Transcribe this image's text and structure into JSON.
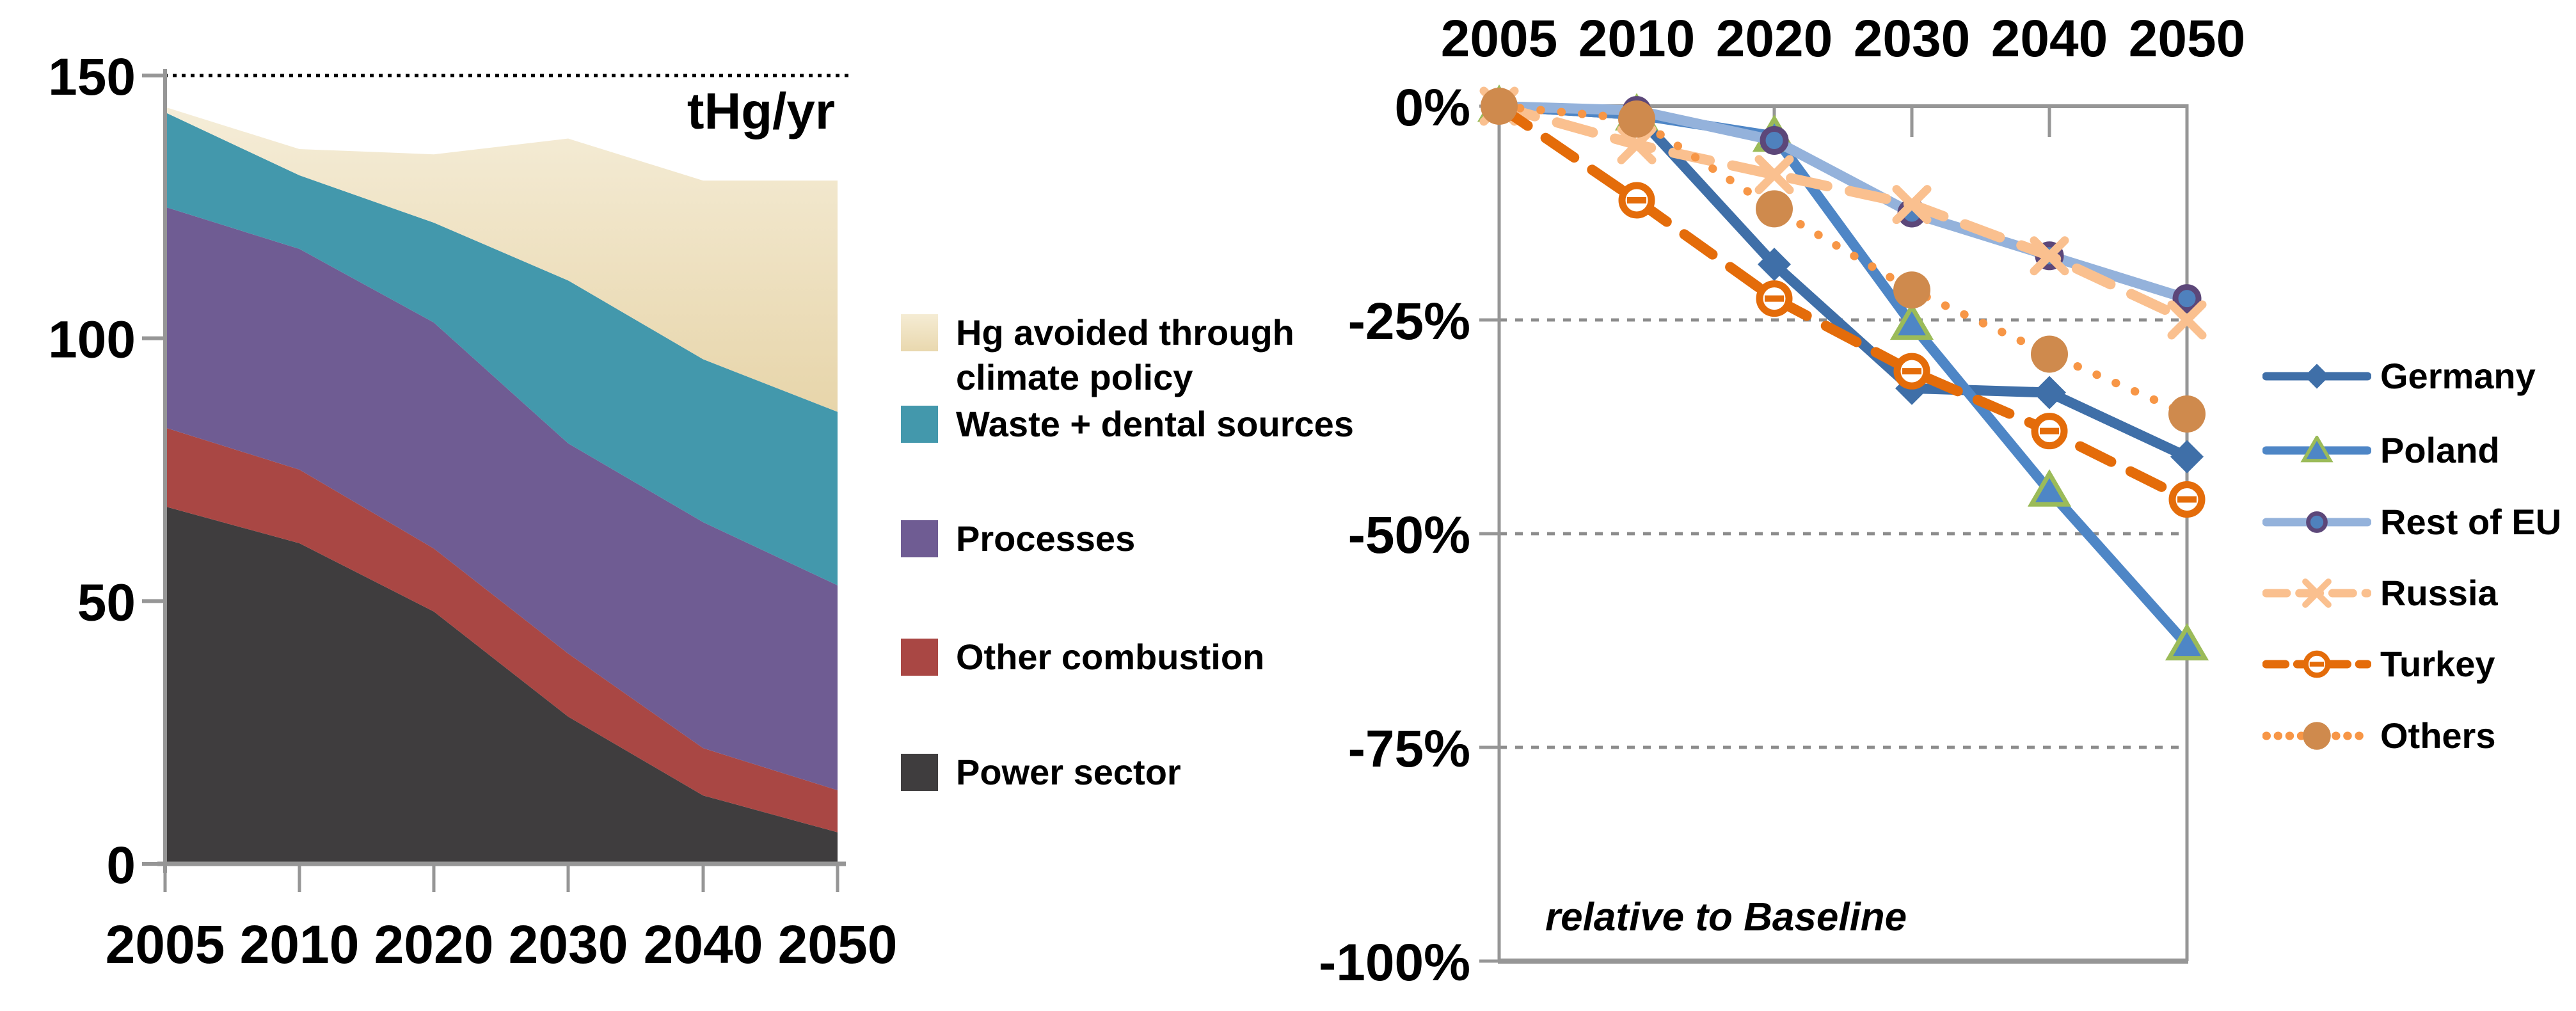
{
  "chart_data": [
    {
      "type": "area",
      "title": "tHg/yr",
      "categories": [
        2005,
        2010,
        2020,
        2030,
        2040,
        2050
      ],
      "x_tick_labels": [
        "2005",
        "2010",
        "2020",
        "2030",
        "2040",
        "2050"
      ],
      "y_tick_labels": [
        "0",
        "50",
        "100",
        "150"
      ],
      "yticks": [
        0,
        50,
        100,
        150
      ],
      "ylim": [
        0,
        150
      ],
      "ref_line": 150,
      "axis_color": "#969696",
      "ref_line_color": "#000000",
      "legend_position": "right",
      "stack_order_bottom_to_top": [
        "Power sector",
        "Other combustion",
        "Processes",
        "Waste + dental sources",
        "Hg avoided through climate policy"
      ],
      "series": [
        {
          "name": "Power sector",
          "color": "#3F3D3E",
          "values": [
            68,
            61,
            48,
            28,
            13,
            6
          ]
        },
        {
          "name": "Other combustion",
          "color": "#A94744",
          "values": [
            15,
            14,
            12,
            12,
            9,
            8
          ]
        },
        {
          "name": "Processes",
          "color": "#6F5C93",
          "values": [
            42,
            42,
            43,
            40,
            43,
            39
          ]
        },
        {
          "name": "Waste + dental sources",
          "color": "#4398AC",
          "values": [
            18,
            14,
            19,
            31,
            31,
            33
          ]
        },
        {
          "name": "Hg avoided through climate policy",
          "color": "#F0E6CB",
          "gradient": {
            "top": "#F5EDD8",
            "bottom": "#E7D5AA"
          },
          "values": [
            1,
            5,
            13,
            27,
            34,
            44
          ]
        }
      ]
    },
    {
      "type": "line",
      "annotation": "relative to Baseline",
      "categories": [
        2005,
        2010,
        2020,
        2030,
        2040,
        2050
      ],
      "x_tick_labels": [
        "2005",
        "2010",
        "2020",
        "2030",
        "2040",
        "2050"
      ],
      "y_tick_labels": [
        "0%",
        "-25%",
        "-50%",
        "-75%",
        "-100%"
      ],
      "yticks": [
        0,
        -25,
        -50,
        -75,
        -100
      ],
      "ylim": [
        -100,
        0
      ],
      "grid_on": true,
      "axis_color": "#969696",
      "grid_color": "#8C8C8C",
      "legend_position": "right",
      "series": [
        {
          "name": "Germany",
          "color": "#3F6FA8",
          "marker": "diamond",
          "marker_fill": "#3F6FA8",
          "dash": "",
          "values": [
            0,
            -1,
            -18.5,
            -33,
            -33.5,
            -41
          ]
        },
        {
          "name": "Poland",
          "color": "#4E86C6",
          "marker": "triangle",
          "marker_fill": "#4E86C6",
          "marker_border": "#9BBB59",
          "dash": "",
          "values": [
            0,
            -1,
            -3.5,
            -25.5,
            -45,
            -63
          ]
        },
        {
          "name": "Rest of EU",
          "color": "#94B2DB",
          "marker": "circle",
          "marker_fill": "#4F81BD",
          "marker_border": "#5C4779",
          "dash": "",
          "values": [
            0,
            -0.5,
            -4,
            -12.5,
            -17.5,
            -22.5
          ]
        },
        {
          "name": "Russia",
          "color": "#FAC08F",
          "marker": "x",
          "dash": "58 36",
          "values": [
            0,
            -4.5,
            -8,
            -11.5,
            -17.5,
            -25
          ]
        },
        {
          "name": "Turkey",
          "color": "#E46C0A",
          "marker": "open-circle",
          "dash": "54 34",
          "values": [
            0,
            -11,
            -22.5,
            -31,
            -38,
            -46
          ]
        },
        {
          "name": "Others",
          "color": "#F79646",
          "marker": "filled-circle",
          "marker_fill": "#CF8A4D",
          "dash": "0.5 32",
          "values": [
            0,
            -1.5,
            -12,
            -21.5,
            -29,
            -36
          ]
        }
      ]
    }
  ]
}
